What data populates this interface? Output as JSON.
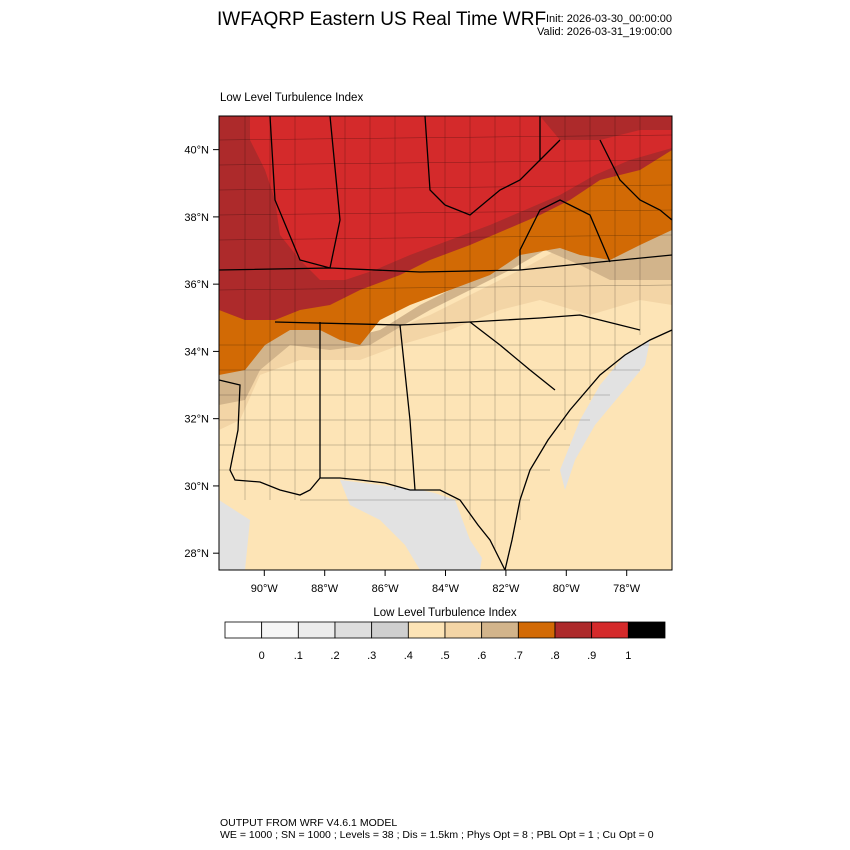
{
  "header": {
    "title": "IWFAQRP Eastern US Real Time WRF",
    "init": "Init: 2026-03-30_00:00:00",
    "valid": "Valid: 2026-03-31_19:00:00"
  },
  "map": {
    "title": "Low Level Turbulence Index",
    "lat_labels": [
      "40°N",
      "38°N",
      "36°N",
      "34°N",
      "32°N",
      "30°N",
      "28°N"
    ],
    "lon_labels": [
      "90°W",
      "88°W",
      "86°W",
      "84°W",
      "82°W",
      "80°W",
      "78°W"
    ],
    "lat_values": [
      40,
      38,
      36,
      34,
      32,
      30,
      28
    ],
    "lon_values": [
      -90,
      -88,
      -86,
      -84,
      -82,
      -80,
      -78
    ],
    "lat_range": [
      27.5,
      41.0
    ],
    "lon_range": [
      -91.5,
      -76.5
    ],
    "field_colors": {
      "water": "#fde4b6",
      "water_grey": "#e2e2e2",
      "low": "#fde4b6",
      "lowmid": "#f3d5a6",
      "tan": "#d2b48b",
      "orange": "#d26a05",
      "red_dark": "#ad2a2b",
      "red": "#d42a2b"
    }
  },
  "legend": {
    "title": "Low Level Turbulence Index",
    "labels": [
      "0",
      ".1",
      ".2",
      ".3",
      ".4",
      ".5",
      ".6",
      ".7",
      ".8",
      ".9",
      "1"
    ],
    "colors": [
      "#ffffff",
      "#f6f6f6",
      "#ececec",
      "#dedede",
      "#cfcfcf",
      "#fde4b6",
      "#f3d5a6",
      "#d2b48b",
      "#d26a05",
      "#ad2a2b",
      "#d42a2b",
      "#000000"
    ]
  },
  "footer": {
    "line1": "OUTPUT FROM WRF V4.6.1 MODEL",
    "line2": "WE = 1000 ; SN = 1000 ; Levels = 38 ; Dis = 1.5km ; Phys Opt = 8 ; PBL Opt = 1 ; Cu Opt = 0"
  }
}
